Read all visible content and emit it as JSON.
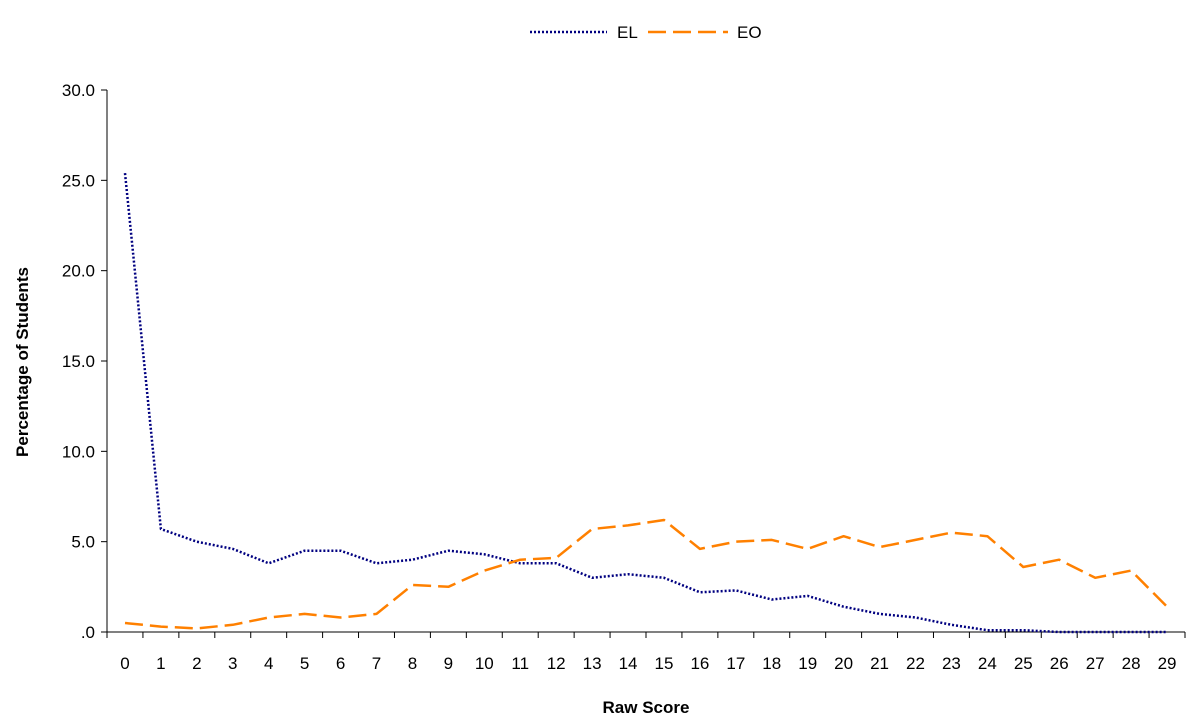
{
  "chart_data": {
    "type": "line",
    "xlabel": "Raw Score",
    "ylabel": "Percentage of Students",
    "ylim": [
      0,
      30
    ],
    "yticks": [
      0,
      5,
      10,
      15,
      20,
      25,
      30
    ],
    "ytick_labels": [
      ".0",
      "5.0",
      "10.0",
      "15.0",
      "20.0",
      "25.0",
      "30.0"
    ],
    "categories": [
      "0",
      "1",
      "2",
      "3",
      "4",
      "5",
      "6",
      "7",
      "8",
      "9",
      "10",
      "11",
      "12",
      "13",
      "14",
      "15",
      "16",
      "17",
      "18",
      "19",
      "20",
      "21",
      "22",
      "23",
      "24",
      "25",
      "26",
      "27",
      "28",
      "29"
    ],
    "legend_position": "top-center",
    "grid": false,
    "series": [
      {
        "name": "EL",
        "color": "#000080",
        "dash": "dotted",
        "values": [
          25.4,
          5.7,
          5.0,
          4.6,
          3.8,
          4.5,
          4.5,
          3.8,
          4.0,
          4.5,
          4.3,
          3.8,
          3.8,
          3.0,
          3.2,
          3.0,
          2.2,
          2.3,
          1.8,
          2.0,
          1.4,
          1.0,
          0.8,
          0.4,
          0.1,
          0.1,
          0.0,
          0.0,
          0.0,
          0.0
        ]
      },
      {
        "name": "EO",
        "color": "#FF8000",
        "dash": "dashed",
        "values": [
          0.5,
          0.3,
          0.2,
          0.4,
          0.8,
          1.0,
          0.8,
          1.0,
          2.6,
          2.5,
          3.4,
          4.0,
          4.1,
          5.7,
          5.9,
          6.2,
          4.6,
          5.0,
          5.1,
          4.6,
          5.3,
          4.7,
          5.1,
          5.5,
          5.3,
          3.6,
          4.0,
          3.0,
          3.4,
          1.4
        ]
      }
    ]
  }
}
